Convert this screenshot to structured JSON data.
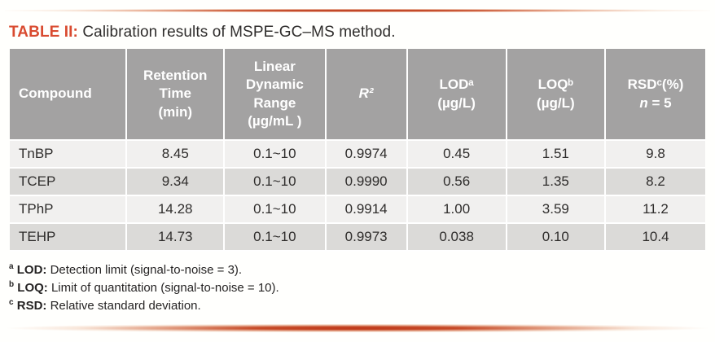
{
  "colors": {
    "accent_red": "#d94b30",
    "rule_red": "#bd3518",
    "header_gray": "#a3a2a2",
    "row_light": "#f1f0ef",
    "row_dark": "#dbdad8",
    "body_text": "#2f2d2c"
  },
  "title": {
    "tag": "TABLE II:",
    "text": " Calibration results of MSPE-GC–MS method."
  },
  "table": {
    "header": {
      "compound": "Compound",
      "retention": "Retention\nTime\n(min)",
      "linear": "Linear\nDynamic\nRange\n(µg/mL )",
      "r2": "R²",
      "lod": "LODᵃ\n(µg/L)",
      "loq": "LOQᵇ\n(µg/L)",
      "rsd_line1": "RSDᶜ(%)",
      "rsd_n": "n",
      "rsd_rest": " = 5"
    },
    "rows": [
      [
        "TnBP",
        "8.45",
        "0.1~10",
        "0.9974",
        "0.45",
        "1.51",
        "9.8"
      ],
      [
        "TCEP",
        "9.34",
        "0.1~10",
        "0.9990",
        "0.56",
        "1.35",
        "8.2"
      ],
      [
        "TPhP",
        "14.28",
        "0.1~10",
        "0.9914",
        "1.00",
        "3.59",
        "11.2"
      ],
      [
        "TEHP",
        "14.73",
        "0.1~10",
        "0.9973",
        "0.038",
        "0.10",
        "10.4"
      ]
    ]
  },
  "footnotes": [
    {
      "marker": "a",
      "label": "LOD:",
      "text": " Detection limit (signal-to-noise = 3)."
    },
    {
      "marker": "b",
      "label": "LOQ:",
      "text": " Limit of quantitation (signal-to-noise = 10)."
    },
    {
      "marker": "c",
      "label": "RSD:",
      "text": " Relative standard deviation."
    }
  ]
}
